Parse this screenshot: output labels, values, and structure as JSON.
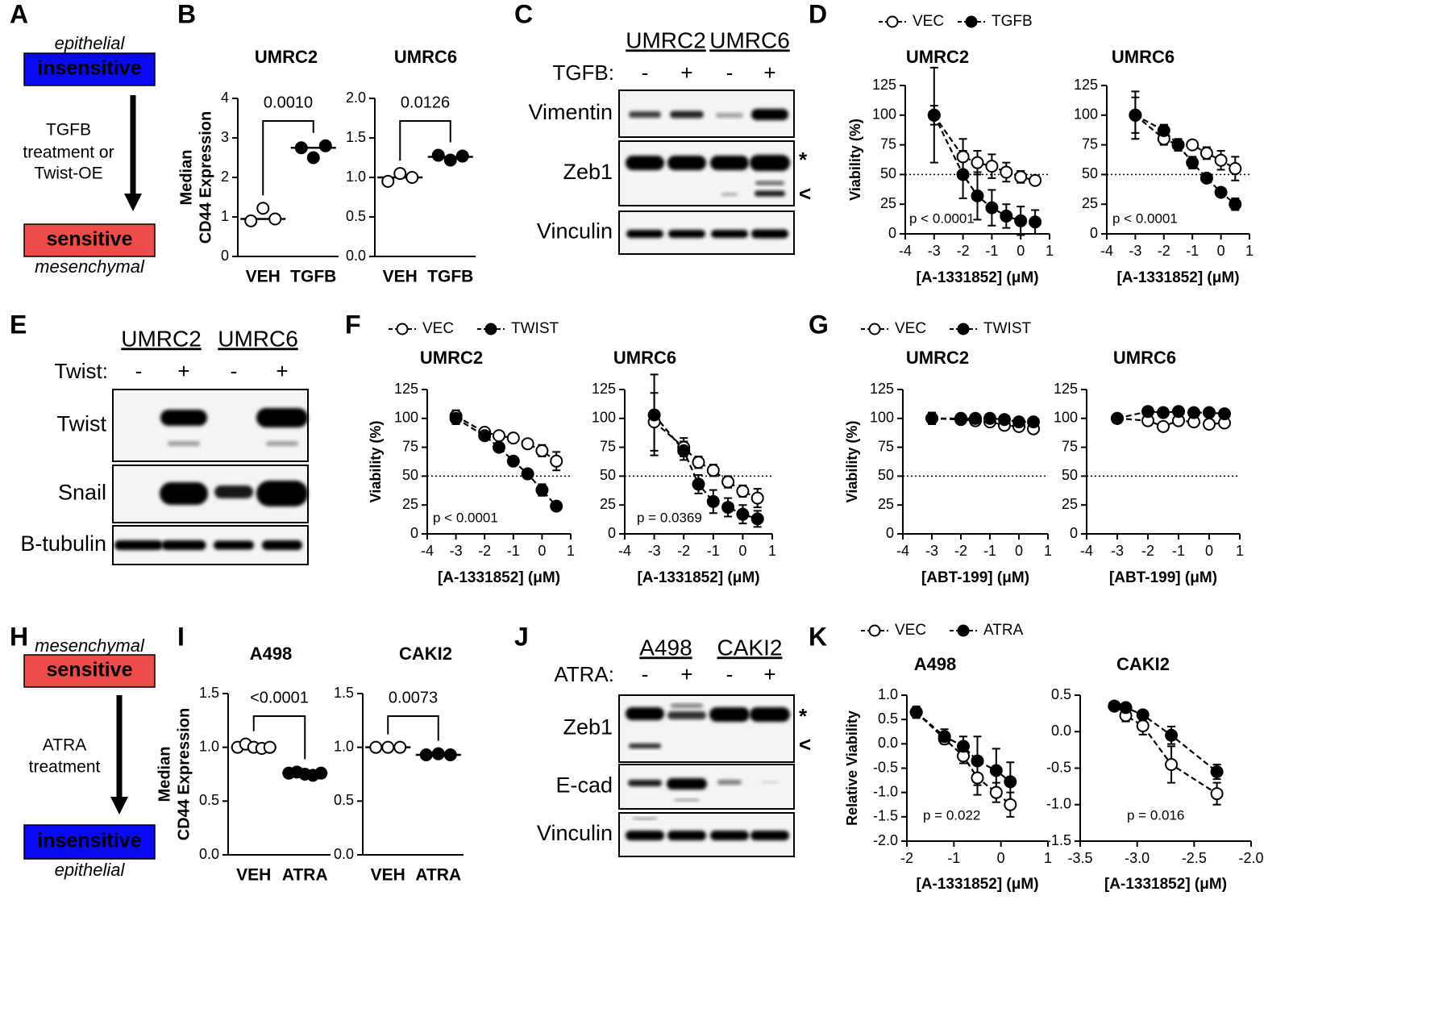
{
  "panel_labels": [
    "A",
    "B",
    "C",
    "D",
    "E",
    "F",
    "G",
    "H",
    "I",
    "J",
    "K"
  ],
  "diagrams": [
    {
      "top_note": "epithelial",
      "top_box": "insensitive",
      "arrow_text": [
        "TGFB",
        "treatment or",
        "Twist-OE"
      ],
      "bottom_box": "sensitive",
      "bottom_note": "mesenchymal"
    },
    {
      "top_note": "mesenchymal",
      "top_box": "sensitive",
      "arrow_text": [
        "ATRA",
        "treatment"
      ],
      "bottom_box": "insensitive",
      "bottom_note": "epithelial"
    }
  ],
  "blots": [
    {
      "cell_lines": [
        "UMRC2",
        "UMRC6"
      ],
      "treatment": "TGFB:",
      "lanes": [
        "-",
        "+",
        "-",
        "+"
      ],
      "rows": [
        "Vimentin",
        "Zeb1",
        "Vinculin"
      ],
      "markers": [
        "*",
        "<"
      ]
    },
    {
      "cell_lines": [
        "UMRC2",
        "UMRC6"
      ],
      "treatment": "Twist:",
      "lanes": [
        "-",
        "+",
        "-",
        "+"
      ],
      "rows": [
        "Twist",
        "Snail",
        "B-tubulin"
      ]
    },
    {
      "cell_lines": [
        "A498",
        "CAKI2"
      ],
      "treatment": "ATRA:",
      "lanes": [
        "-",
        "+",
        "-",
        "+"
      ],
      "rows": [
        "Zeb1",
        "E-cad",
        "Vinculin"
      ],
      "markers": [
        "*",
        "<"
      ]
    }
  ],
  "chart_data": [
    {
      "type": "strip",
      "title": "UMRC2",
      "ylabel": [
        "Median",
        "CD44 Expression"
      ],
      "categories": [
        "VEH",
        "TGFB"
      ],
      "points": [
        [
          0.9,
          1.22,
          0.95
        ],
        [
          2.75,
          2.5,
          2.8
        ]
      ],
      "medians": [
        0.95,
        2.75
      ],
      "colors": [
        "#ffffff",
        "#000000"
      ],
      "ylim": [
        0,
        4
      ],
      "yticks": [
        0,
        1,
        2,
        3,
        4
      ],
      "comparison": "0.0010"
    },
    {
      "type": "strip",
      "title": "UMRC6",
      "categories": [
        "VEH",
        "TGFB"
      ],
      "points": [
        [
          0.95,
          1.05,
          1.0
        ],
        [
          1.28,
          1.22,
          1.27
        ]
      ],
      "medians": [
        1.0,
        1.26
      ],
      "colors": [
        "#ffffff",
        "#000000"
      ],
      "ylim": [
        0,
        2
      ],
      "yticks": [
        {
          "value": 0,
          "label": "0.0"
        },
        0.5,
        {
          "value": 1,
          "label": "1.0"
        },
        1.5,
        {
          "value": 2,
          "label": "2.0"
        }
      ],
      "comparison": "0.0126"
    },
    {
      "type": "line",
      "title": "UMRC2",
      "ylabel": "Viability (%)",
      "xlabel": "[A-1331852] (μM)",
      "legend": "top",
      "x": [
        -3,
        -2,
        -1.5,
        -1,
        -0.5,
        0,
        0.5
      ],
      "series": [
        {
          "name": "VEC",
          "color": "#ffffff",
          "values": [
            100,
            65,
            60,
            57,
            52,
            48,
            45
          ],
          "errors": [
            8,
            15,
            10,
            10,
            8,
            5,
            3
          ]
        },
        {
          "name": "TGFB",
          "color": "#000000",
          "values": [
            100,
            50,
            32,
            22,
            15,
            11,
            10
          ],
          "errors": [
            40,
            20,
            20,
            15,
            10,
            12,
            10
          ]
        }
      ],
      "xlim": [
        -4,
        1
      ],
      "xticks": [
        -4,
        -3,
        -2,
        -1,
        0,
        1
      ],
      "ylim": [
        0,
        125
      ],
      "yticks": [
        0,
        25,
        50,
        75,
        100,
        125
      ],
      "hline": 50,
      "annotation": "p < 0.0001"
    },
    {
      "type": "line",
      "title": "UMRC6",
      "xlabel": "[A-1331852] (μM)",
      "x": [
        -3,
        -2,
        -1.5,
        -1,
        -0.5,
        0,
        0.5
      ],
      "series": [
        {
          "name": "VEC",
          "color": "#ffffff",
          "values": [
            100,
            80,
            75,
            75,
            68,
            62,
            55
          ],
          "errors": [
            20,
            5,
            3,
            3,
            5,
            8,
            10
          ]
        },
        {
          "name": "TGFB",
          "color": "#000000",
          "values": [
            100,
            87,
            75,
            60,
            47,
            35,
            25
          ],
          "errors": [
            15,
            5,
            5,
            5,
            3,
            3,
            5
          ]
        }
      ],
      "xlim": [
        -4,
        1
      ],
      "xticks": [
        -4,
        -3,
        -2,
        -1,
        0,
        1
      ],
      "ylim": [
        0,
        125
      ],
      "yticks": [
        0,
        25,
        50,
        75,
        100,
        125
      ],
      "hline": 50,
      "annotation": "p < 0.0001"
    },
    {
      "type": "line",
      "title": "UMRC2",
      "ylabel": "Viability (%)",
      "xlabel": "[A-1331852] (μM)",
      "legend": "top",
      "x": [
        -3,
        -2,
        -1.5,
        -1,
        -0.5,
        0,
        0.5
      ],
      "series": [
        {
          "name": "VEC",
          "color": "#ffffff",
          "values": [
            102,
            88,
            85,
            83,
            78,
            72,
            63
          ],
          "errors": [
            5,
            3,
            2,
            2,
            3,
            5,
            8
          ]
        },
        {
          "name": "TWIST",
          "color": "#000000",
          "values": [
            100,
            85,
            75,
            63,
            52,
            38,
            24
          ],
          "errors": [
            5,
            3,
            3,
            3,
            3,
            5,
            2
          ]
        }
      ],
      "xlim": [
        -4,
        1
      ],
      "xticks": [
        -4,
        -3,
        -2,
        -1,
        0,
        1
      ],
      "ylim": [
        0,
        125
      ],
      "yticks": [
        0,
        25,
        50,
        75,
        100,
        125
      ],
      "hline": 50,
      "annotation": "p < 0.0001"
    },
    {
      "type": "line",
      "title": "UMRC6",
      "xlabel": "[A-1331852] (μM)",
      "x": [
        -3,
        -2,
        -1.5,
        -1,
        -0.5,
        0,
        0.5
      ],
      "series": [
        {
          "name": "VEC",
          "color": "#ffffff",
          "values": [
            97,
            75,
            62,
            55,
            45,
            37,
            31
          ],
          "errors": [
            25,
            8,
            5,
            5,
            5,
            5,
            8
          ]
        },
        {
          "name": "TWIST",
          "color": "#000000",
          "values": [
            103,
            72,
            43,
            28,
            23,
            17,
            13
          ],
          "errors": [
            35,
            8,
            8,
            10,
            8,
            8,
            7
          ]
        }
      ],
      "xlim": [
        -4,
        1
      ],
      "xticks": [
        -4,
        -3,
        -2,
        -1,
        0,
        1
      ],
      "ylim": [
        0,
        125
      ],
      "yticks": [
        0,
        25,
        50,
        75,
        100,
        125
      ],
      "hline": 50,
      "annotation": "p = 0.0369"
    },
    {
      "type": "line",
      "title": "UMRC2",
      "ylabel": "Viability (%)",
      "xlabel": "[ABT-199] (μM)",
      "legend": "top",
      "x": [
        -3,
        -2,
        -1.5,
        -1,
        -0.5,
        0,
        0.5
      ],
      "series": [
        {
          "name": "VEC",
          "color": "#ffffff",
          "values": [
            100,
            99,
            98,
            97,
            94,
            93,
            91
          ],
          "errors": [
            5,
            2,
            2,
            2,
            2,
            2,
            2
          ]
        },
        {
          "name": "TWIST",
          "color": "#000000",
          "values": [
            100,
            100,
            100,
            100,
            99,
            97,
            97
          ],
          "errors": [
            5,
            2,
            2,
            2,
            2,
            2,
            2
          ]
        }
      ],
      "xlim": [
        -4,
        1
      ],
      "xticks": [
        -4,
        -3,
        -2,
        -1,
        0,
        1
      ],
      "ylim": [
        0,
        125
      ],
      "yticks": [
        0,
        25,
        50,
        75,
        100,
        125
      ],
      "hline": 50
    },
    {
      "type": "line",
      "title": "UMRC6",
      "xlabel": "[ABT-199] (μM)",
      "x": [
        -3,
        -2,
        -1.5,
        -1,
        -0.5,
        0,
        0.5
      ],
      "series": [
        {
          "name": "VEC",
          "color": "#ffffff",
          "values": [
            100,
            98,
            93,
            98,
            97,
            95,
            96
          ],
          "errors": [
            3,
            3,
            3,
            3,
            2,
            2,
            2
          ]
        },
        {
          "name": "TWIST",
          "color": "#000000",
          "values": [
            100,
            106,
            105,
            106,
            105,
            105,
            104
          ],
          "errors": [
            3,
            3,
            3,
            3,
            2,
            2,
            2
          ]
        }
      ],
      "xlim": [
        -4,
        1
      ],
      "xticks": [
        -4,
        -3,
        -2,
        -1,
        0,
        1
      ],
      "ylim": [
        0,
        125
      ],
      "yticks": [
        0,
        25,
        50,
        75,
        100,
        125
      ],
      "hline": 50
    },
    {
      "type": "strip",
      "title": "A498",
      "ylabel": [
        "Median",
        "CD44 Expression"
      ],
      "categories": [
        "VEH",
        "ATRA"
      ],
      "points": [
        [
          1.0,
          1.03,
          1.0,
          0.99,
          1.0
        ],
        [
          0.76,
          0.77,
          0.75,
          0.74,
          0.76
        ]
      ],
      "medians": [
        1.0,
        0.76
      ],
      "colors": [
        "#ffffff",
        "#000000"
      ],
      "ylim": [
        0,
        1.5
      ],
      "yticks": [
        {
          "value": 0,
          "label": "0.0"
        },
        0.5,
        {
          "value": 1,
          "label": "1.0"
        },
        1.5
      ],
      "comparison": "<0.0001"
    },
    {
      "type": "strip",
      "title": "CAKI2",
      "categories": [
        "VEH",
        "ATRA"
      ],
      "points": [
        [
          1.0,
          1.0,
          1.0
        ],
        [
          0.93,
          0.94,
          0.93
        ]
      ],
      "medians": [
        1.0,
        0.93
      ],
      "colors": [
        "#ffffff",
        "#000000"
      ],
      "ylim": [
        0,
        1.5
      ],
      "yticks": [
        {
          "value": 0,
          "label": "0.0"
        },
        0.5,
        {
          "value": 1,
          "label": "1.0"
        },
        1.5
      ],
      "comparison": "0.0073"
    },
    {
      "type": "line",
      "title": "A498",
      "ylabel": "Relative Viability",
      "xlabel": "[A-1331852] (μM)",
      "legend": "top",
      "x": [
        -1.8,
        -1.2,
        -0.8,
        -0.5,
        -0.1,
        0.2
      ],
      "series": [
        {
          "name": "VEC",
          "color": "#ffffff",
          "values": [
            0.65,
            0.1,
            -0.25,
            -0.7,
            -1.0,
            -1.25
          ],
          "errors": [
            0.1,
            0.1,
            0.15,
            0.35,
            0.2,
            0.25
          ]
        },
        {
          "name": "ATRA",
          "color": "#000000",
          "values": [
            0.65,
            0.15,
            -0.05,
            -0.35,
            -0.55,
            -0.78
          ],
          "errors": [
            0.12,
            0.15,
            0.2,
            0.5,
            0.45,
            0.4
          ]
        }
      ],
      "xlim": [
        -2,
        1
      ],
      "xticks": [
        -2,
        -1,
        0,
        1
      ],
      "ylim": [
        -2,
        1
      ],
      "yticks": [
        {
          "value": -2,
          "label": "-2.0"
        },
        -1.5,
        {
          "value": -1,
          "label": "-1.0"
        },
        -0.5,
        {
          "value": 0,
          "label": "0.0"
        },
        0.5,
        {
          "value": 1,
          "label": "1.0"
        }
      ],
      "annotation": "p = 0.022"
    },
    {
      "type": "line",
      "title": "CAKI2",
      "xlabel": "[A-1331852] (μM)",
      "x": [
        -3.2,
        -3.1,
        -2.95,
        -2.7,
        -2.3
      ],
      "series": [
        {
          "name": "VEC",
          "color": "#ffffff",
          "values": [
            0.35,
            0.22,
            0.08,
            -0.45,
            -0.85
          ],
          "errors": [
            0.03,
            0.08,
            0.12,
            0.25,
            0.15
          ]
        },
        {
          "name": "ATRA",
          "color": "#000000",
          "values": [
            0.35,
            0.33,
            0.23,
            -0.05,
            -0.55
          ],
          "errors": [
            0.03,
            0.03,
            0.05,
            0.12,
            0.1
          ]
        }
      ],
      "xlim": [
        -3.5,
        -2
      ],
      "xticks": [
        -3.5,
        {
          "value": -3,
          "label": "-3.0"
        },
        -2.5,
        {
          "value": -2,
          "label": "-2.0"
        }
      ],
      "ylim": [
        -1.5,
        0.5
      ],
      "yticks": [
        -1.5,
        {
          "value": -1,
          "label": "-1.0"
        },
        -0.5,
        {
          "value": 0,
          "label": "0.0"
        },
        0.5
      ],
      "annotation": "p = 0.016"
    }
  ]
}
